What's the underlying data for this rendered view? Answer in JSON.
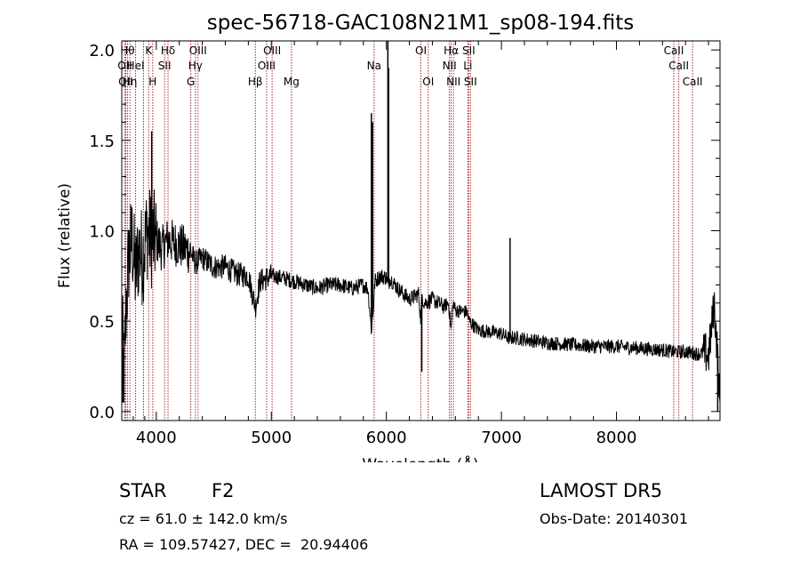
{
  "chart_data": {
    "type": "line",
    "title": "spec-56718-GAC108N21M1_sp08-194.fits",
    "xlabel": "Wavelength (Å)",
    "ylabel": "Flux (relative)",
    "xlim": [
      3700,
      8900
    ],
    "ylim": [
      -0.05,
      2.05
    ],
    "xticks": [
      4000,
      5000,
      6000,
      7000,
      8000
    ],
    "xtick_labels": [
      "4000",
      "5000",
      "6000",
      "7000",
      "8000"
    ],
    "yticks": [
      0.0,
      0.5,
      1.0,
      1.5,
      2.0
    ],
    "ytick_labels": [
      "0.0",
      "0.5",
      "1.0",
      "1.5",
      "2.0"
    ],
    "grid": false,
    "spectrum_color": "#000000",
    "line_marker_color": "#a52a2a",
    "spectrum_anchors": {
      "x": [
        3700,
        3720,
        3740,
        3760,
        3790,
        3820,
        3850,
        3880,
        3920,
        3960,
        4000,
        4050,
        4100,
        4200,
        4300,
        4340,
        4400,
        4500,
        4600,
        4700,
        4800,
        4862,
        4900,
        5000,
        5100,
        5200,
        5300,
        5400,
        5500,
        5600,
        5700,
        5800,
        5840,
        5870,
        5890,
        5900,
        5950,
        6000,
        6020,
        6030,
        6100,
        6200,
        6280,
        6300,
        6310,
        6330,
        6400,
        6500,
        6540,
        6563,
        6580,
        6600,
        6700,
        6720,
        6800,
        6900,
        7000,
        7080,
        7100,
        7200,
        7400,
        7600,
        7800,
        8000,
        8200,
        8400,
        8500,
        8600,
        8700,
        8780,
        8800,
        8850,
        8880,
        8900
      ],
      "y": [
        0.5,
        0.2,
        0.6,
        0.85,
        0.95,
        0.75,
        0.9,
        0.85,
        1.0,
        0.95,
        0.95,
        0.9,
        0.95,
        0.92,
        0.88,
        0.82,
        0.85,
        0.8,
        0.8,
        0.76,
        0.75,
        0.58,
        0.72,
        0.75,
        0.74,
        0.72,
        0.7,
        0.68,
        0.7,
        0.7,
        0.68,
        0.7,
        0.68,
        0.45,
        0.6,
        0.72,
        0.75,
        0.74,
        0.7,
        0.74,
        0.68,
        0.62,
        0.65,
        0.5,
        0.64,
        0.6,
        0.62,
        0.58,
        0.6,
        0.45,
        0.6,
        0.56,
        0.55,
        0.5,
        0.45,
        0.44,
        0.43,
        0.4,
        0.41,
        0.4,
        0.38,
        0.37,
        0.36,
        0.36,
        0.35,
        0.34,
        0.33,
        0.33,
        0.32,
        0.32,
        0.3,
        0.6,
        0.3,
        0.0
      ]
    },
    "spikes": [
      {
        "x": 3960,
        "y": 1.55
      },
      {
        "x": 3710,
        "y": 0.05
      },
      {
        "x": 5870,
        "y": 1.65
      },
      {
        "x": 5880,
        "y": 1.6
      },
      {
        "x": 6013,
        "y": 2.05
      },
      {
        "x": 6020,
        "y": 1.9
      },
      {
        "x": 6308,
        "y": 0.22
      },
      {
        "x": 7075,
        "y": 0.96
      },
      {
        "x": 8880,
        "y": 0.0
      }
    ],
    "lines": [
      {
        "x": 3727,
        "label": "OII",
        "row": 1
      },
      {
        "x": 3734,
        "label": "OII",
        "row": 2
      },
      {
        "x": 3750,
        "label": "Hθ",
        "row": 0
      },
      {
        "x": 3770,
        "label": "Hη",
        "row": 2
      },
      {
        "x": 3820,
        "label": "HeI",
        "row": 1
      },
      {
        "x": 3889,
        "label": "",
        "row": 0
      },
      {
        "x": 3934,
        "label": "K",
        "row": 0
      },
      {
        "x": 3969,
        "label": "H",
        "row": 2
      },
      {
        "x": 4072,
        "label": "SII",
        "row": 1
      },
      {
        "x": 4102,
        "label": "Hδ",
        "row": 0
      },
      {
        "x": 4300,
        "label": "G",
        "row": 2
      },
      {
        "x": 4340,
        "label": "Hγ",
        "row": 1
      },
      {
        "x": 4363,
        "label": "OIII",
        "row": 0
      },
      {
        "x": 4861,
        "label": "Hβ",
        "row": 2
      },
      {
        "x": 4959,
        "label": "OIII",
        "row": 1
      },
      {
        "x": 5007,
        "label": "OIII",
        "row": 0
      },
      {
        "x": 5175,
        "label": "Mg",
        "row": 2
      },
      {
        "x": 5893,
        "label": "Na",
        "row": 1
      },
      {
        "x": 6300,
        "label": "OI",
        "row": 0
      },
      {
        "x": 6364,
        "label": "OI",
        "row": 2
      },
      {
        "x": 6548,
        "label": "NII",
        "row": 1
      },
      {
        "x": 6563,
        "label": "Hα",
        "row": 0
      },
      {
        "x": 6583,
        "label": "NII",
        "row": 2
      },
      {
        "x": 6708,
        "label": "Li",
        "row": 1
      },
      {
        "x": 6716,
        "label": "SII",
        "row": 0
      },
      {
        "x": 6731,
        "label": "SII",
        "row": 2
      },
      {
        "x": 8498,
        "label": "CaII",
        "row": 0
      },
      {
        "x": 8542,
        "label": "CaII",
        "row": 1
      },
      {
        "x": 8662,
        "label": "CaII",
        "row": 2
      }
    ]
  },
  "info": {
    "class": "STAR",
    "subclass": "F2",
    "survey": "LAMOST DR5",
    "cz": "cz = 61.0 ± 142.0 km/s",
    "obsdate": "Obs-Date: 20140301",
    "radec": "RA = 109.57427, DEC =  20.94406"
  }
}
